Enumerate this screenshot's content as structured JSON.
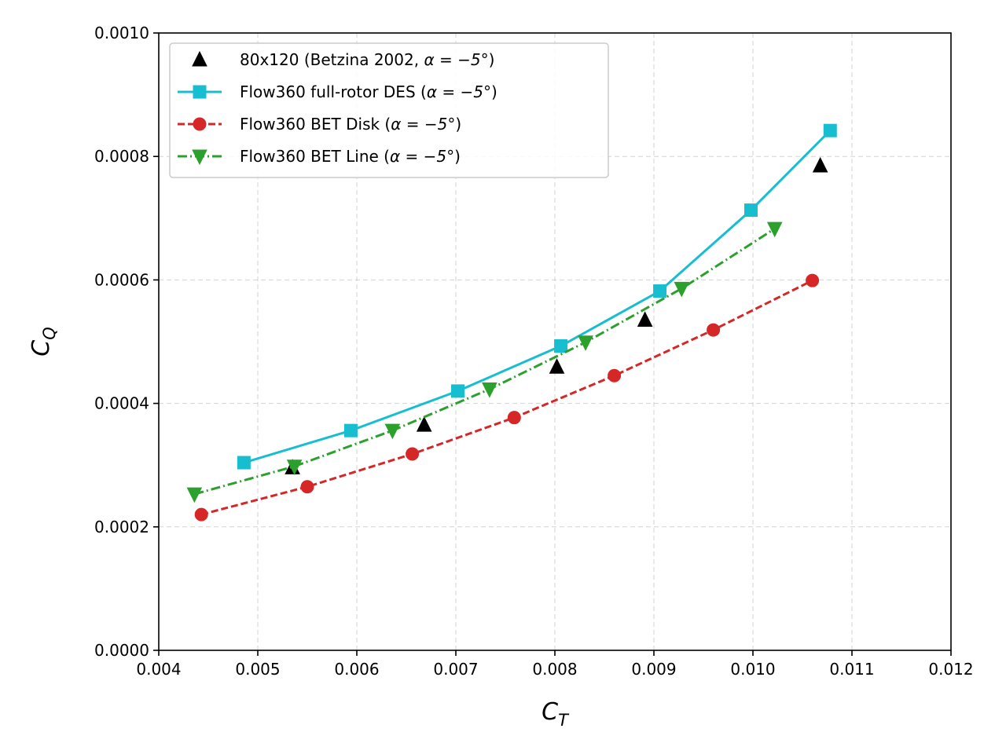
{
  "chart_data": {
    "type": "line",
    "title": "",
    "xlabel": "C",
    "xlabel_sub": "T",
    "ylabel": "C",
    "ylabel_sub": "Q",
    "xlim": [
      0.004,
      0.012
    ],
    "ylim": [
      0.0,
      0.001
    ],
    "xticks": [
      0.004,
      0.005,
      0.006,
      0.007,
      0.008,
      0.009,
      0.01,
      0.011,
      0.012
    ],
    "xtick_labels": [
      "0.004",
      "0.005",
      "0.006",
      "0.007",
      "0.008",
      "0.009",
      "0.010",
      "0.011",
      "0.012"
    ],
    "yticks": [
      0.0,
      0.0002,
      0.0004,
      0.0006,
      0.0008,
      0.001
    ],
    "ytick_labels": [
      "0.0000",
      "0.0002",
      "0.0004",
      "0.0006",
      "0.0008",
      "0.0010"
    ],
    "grid": true,
    "legend_position": "top-left",
    "series": [
      {
        "name": "80x120 (Betzina 2002, α = −5°)",
        "label_prefix": "80x120 (Betzina 2002, ",
        "label_math": "α = −5°",
        "label_suffix": ")",
        "color": "#000000",
        "marker": "triangle-up",
        "linestyle": "none",
        "x": [
          0.00535,
          0.00668,
          0.00802,
          0.00891,
          0.01068
        ],
        "y": [
          0.000296,
          0.000365,
          0.000459,
          0.000535,
          0.000785
        ]
      },
      {
        "name": "Flow360 full-rotor DES (α = −5°)",
        "label_prefix": "Flow360 full-rotor DES (",
        "label_math": "α = −5°",
        "label_suffix": ")",
        "color": "#17becf",
        "marker": "square",
        "linestyle": "solid",
        "x": [
          0.00486,
          0.00594,
          0.00702,
          0.00806,
          0.00906,
          0.00998,
          0.01078
        ],
        "y": [
          0.000304,
          0.000356,
          0.00042,
          0.000493,
          0.000582,
          0.000713,
          0.000842
        ]
      },
      {
        "name": "Flow360 BET Disk (α = −5°)",
        "label_prefix": "Flow360 BET Disk (",
        "label_math": "α = −5°",
        "label_suffix": ")",
        "color": "#d62728",
        "marker": "circle",
        "linestyle": "dashed",
        "x": [
          0.00443,
          0.0055,
          0.00656,
          0.00759,
          0.0086,
          0.0096,
          0.0106
        ],
        "y": [
          0.00022,
          0.000265,
          0.000318,
          0.000377,
          0.000445,
          0.000519,
          0.000599
        ]
      },
      {
        "name": "Flow360 BET Line (α = −5°)",
        "label_prefix": "Flow360 BET Line (",
        "label_math": "α = −5°",
        "label_suffix": ")",
        "color": "#2ca02c",
        "marker": "triangle-down",
        "linestyle": "dashdot",
        "x": [
          0.00436,
          0.00537,
          0.00636,
          0.00734,
          0.00831,
          0.00928,
          0.01022
        ],
        "y": [
          0.000253,
          0.000298,
          0.000356,
          0.000423,
          0.000499,
          0.000586,
          0.000683
        ]
      }
    ]
  }
}
